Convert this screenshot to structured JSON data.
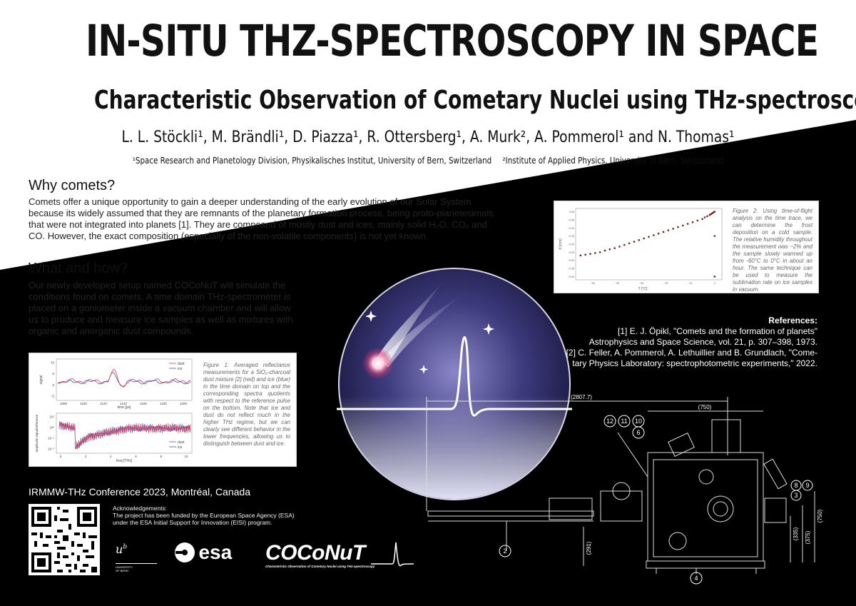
{
  "header": {
    "title": "IN-SITU THZ-SPECTROSCOPY IN SPACE",
    "subtitle": "Characteristic Observation of Cometary Nuclei using THz-spectroscopy",
    "authors": "L. L. Stöckli¹, M. Brändli¹, D. Piazza¹, R. Ottersberg¹, A. Murk², A. Pommerol¹ and N. Thomas¹",
    "affiliation_1": "¹Space Research and Planetology Division, Physikalisches Institut, University of Bern, Switzerland",
    "affiliation_2": "²Institute of Applied Physics, University of Bern, Switzerland"
  },
  "why": {
    "heading": "Why comets?",
    "line1": "Comets offer a unique opportunity to gain a deeper understanding of the early evolution of our Solar System",
    "line2": "because its widely assumed that they are remnants of the planetary formation process, being proto-planetesimals",
    "line3": "that were not integrated into planets [1]. They are composed of mostly dust and ices, mainly solid H₂O, CO₂ and",
    "line4": "CO. However, the exact composition (especially of the non-volatile components) is not yet known."
  },
  "what": {
    "heading": "What and how?",
    "line1": "Our newly developed setup named COCoNuT will simulate the",
    "line2": "conditions found on comets. A time domain THz-spectrometer is",
    "line3": "placed on a goniometer inside a vacuum chamber and will allow",
    "line4": "us to produce and measure ice samples as well as mixtures with",
    "line5": "organic and anorganic dust compounds."
  },
  "figure1": {
    "caption": "Figure 1: Averaged reflectance measurements for a SiO₂-charcoal dust mixture [2] (red) and ice (blue) in the time domain on top and the corresponding spectra quotients with respect to the reference pulse on the bottom. Note that ice and dust do not reflect much in the higher THz regime, but we can clearly see different behavior in the lower frequencies, allowing us to distinguish between dust and ice.",
    "top_xlabel": "time [ps]",
    "top_ylabel": "signal",
    "bottom_xlabel": "freq [THz]",
    "bottom_ylabel": "amplitude signal/reference",
    "top_xticks": [
      "1080",
      "1100",
      "1120",
      "1140",
      "1160",
      "1180",
      "1200"
    ],
    "top_yticks": [
      "10",
      "5",
      "0",
      "−5"
    ],
    "bottom_xticks": [
      "0",
      "2",
      "4",
      "6",
      "8",
      "10"
    ],
    "bottom_yticks": [
      "10¹",
      "10⁰",
      "10⁻¹",
      "10⁻²"
    ],
    "legend_dust": "dust",
    "legend_ice": "ice",
    "color_dust": "#d9334f",
    "color_ice": "#3a55b4"
  },
  "figure2": {
    "caption": "Figure 2: Using time-of-flight analysis on the time trace, we can determine the frost deposition on a cold sample. The relative humidity throughout the measurement was ~2% and the sample slowly warmed up from -60°C to 0°C in about an hour. The same technique can be used to measure the sublimation rate on ice samples in vacuum.",
    "xlabel": "T [°C]",
    "ylabel": "d [mm]",
    "xticks": [
      "−50",
      "−40",
      "−30",
      "−20",
      "−10",
      "0"
    ],
    "yticks": [
      "0.00",
      "−0.05",
      "−0.10",
      "−0.15",
      "−0.20",
      "−0.25",
      "−0.30",
      "−0.35",
      "−0.40"
    ]
  },
  "chart_data": {
    "type": "scatter",
    "title": "",
    "xlabel": "T [°C]",
    "ylabel": "d [mm]",
    "xlim": [
      -57,
      3
    ],
    "ylim": [
      -0.42,
      0.02
    ],
    "x": [
      -55,
      -53,
      -51,
      -49,
      -47,
      -45,
      -43,
      -41,
      -39,
      -37,
      -35,
      -33,
      -31,
      -29,
      -27,
      -25,
      -23,
      -21,
      -19,
      -17,
      -15,
      -13,
      -11,
      -9,
      -7,
      -5,
      -4,
      -3,
      -2,
      -1.5,
      -1,
      -0.5,
      0,
      0,
      0
    ],
    "y": [
      -0.27,
      -0.265,
      -0.26,
      -0.255,
      -0.25,
      -0.24,
      -0.232,
      -0.225,
      -0.215,
      -0.205,
      -0.195,
      -0.185,
      -0.175,
      -0.165,
      -0.155,
      -0.145,
      -0.135,
      -0.125,
      -0.115,
      -0.105,
      -0.095,
      -0.085,
      -0.075,
      -0.065,
      -0.055,
      -0.045,
      -0.035,
      -0.028,
      -0.02,
      -0.015,
      -0.01,
      -0.005,
      0.0,
      -0.15,
      -0.4
    ],
    "color": "#7a1a1a"
  },
  "references": {
    "title": "References:",
    "r1a": "[1] E. J. Öpikl, \"Comets and the formation of planets\"",
    "r1b": "Astrophysics and Space Science, vol. 21, p. 307–398, 1973.",
    "r2a": "[2] C. Feller, A. Pommerol, A. Lethuillier and B. Grundlach, \"Come-",
    "r2b": "tary Physics Laboratory: spectrophotometric experiments,\" 2022."
  },
  "footer": {
    "conference": "IRMMW-THz Conference 2023, Montréal, Canada",
    "ack_title": "Acknowledgements:",
    "ack_text": "The project has been funded by the European Space Agency (ESA) under the ESA Initial Support for Innovation (EISI) program.",
    "unibe_line1": "UNIVERSITY",
    "unibe_line2": "OF BERN",
    "esa_label": "esa",
    "coconut_label": "COCoNuT",
    "coconut_tagline": "Characteristic Observation of Cometary Nuclei using THz-spectroscopy"
  },
  "diagram": {
    "dim_total": "(2807.7)",
    "dim_750_top": "(750)",
    "dim_750_right": "(750)",
    "dim_375": "(375)",
    "dim_335": "(335)",
    "dim_291": "(291)",
    "label_12": "12",
    "label_11": "11",
    "label_10": "10",
    "label_6": "6",
    "label_8": "8",
    "label_9": "9",
    "label_3": "3",
    "label_2": "2",
    "label_4": "4"
  },
  "colors": {
    "background_dark": "#000000",
    "background_light": "#ffffff",
    "dust_red": "#d9334f",
    "ice_blue": "#3a55b4",
    "scatter_dark_red": "#7a1a1a"
  }
}
